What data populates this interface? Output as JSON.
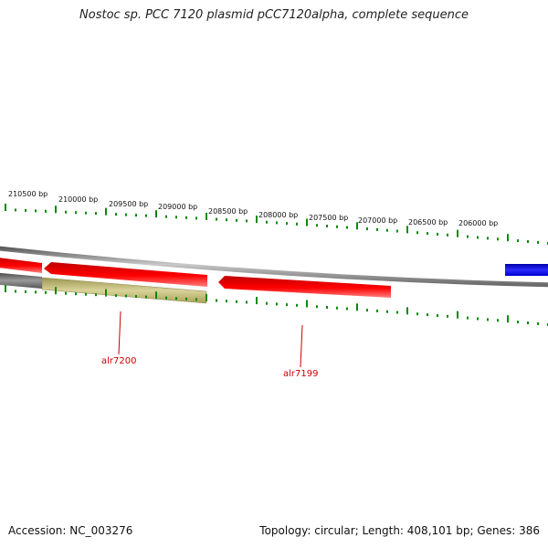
{
  "title": "Nostoc sp. PCC 7120 plasmid pCC7120alpha, complete sequence",
  "footer": {
    "accession": "Accession: NC_003276",
    "stats": "Topology: circular; Length: 408,101 bp; Genes: 386"
  },
  "colors": {
    "tick_green": "#0a8a0a",
    "gene_red": "#e00000",
    "gene_highlight": "#ff7070",
    "ruler_olive": "#c8c07a",
    "ruler_olive_dark": "#a9a255",
    "backbone_gray": "#8a8a8a",
    "blue_feature": "#1010dd",
    "label_red": "#cc0000"
  },
  "ruler": {
    "labels": [
      "210500 bp",
      "210000 bp",
      "209500 bp",
      "209000 bp",
      "208500 bp",
      "208000 bp",
      "207500 bp",
      "207000 bp",
      "206500 bp",
      "206000 bp"
    ]
  },
  "genes": [
    {
      "name": "alr7200"
    },
    {
      "name": "alr7199"
    }
  ]
}
